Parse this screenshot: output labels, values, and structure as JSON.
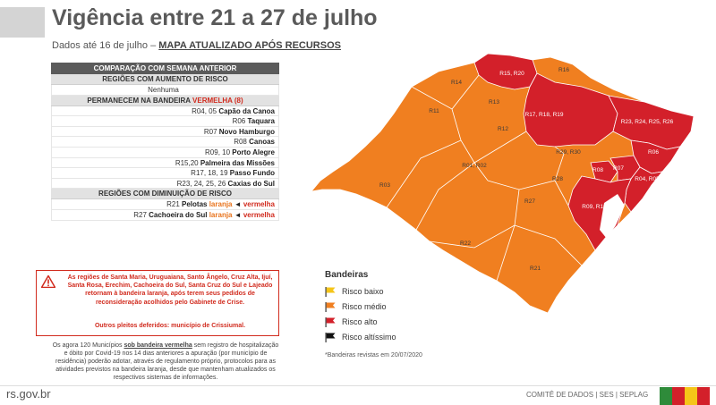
{
  "header": {
    "title": "Vigência entre 21 a 27 de julho",
    "subtitle_prefix": "Dados até 16 de julho –",
    "subtitle_link": "MAPA ATUALIZADO APÓS RECURSOS"
  },
  "comparison": {
    "header": "COMPARAÇÃO COM SEMANA ANTERIOR",
    "increase": {
      "title": "REGIÕES COM AUMENTO DE RISCO",
      "items": [
        "Nenhuma"
      ]
    },
    "remain": {
      "title_prefix": "PERMANECEM NA BANDEIRA ",
      "title_red": "VERMELHA (8)",
      "items": [
        {
          "code": "R04, 05",
          "name": "Capão da Canoa"
        },
        {
          "code": "R06",
          "name": "Taquara"
        },
        {
          "code": "R07",
          "name": "Novo Hamburgo"
        },
        {
          "code": "R08",
          "name": "Canoas"
        },
        {
          "code": "R09, 10",
          "name": "Porto Alegre"
        },
        {
          "code": "R15,20",
          "name": "Palmeira das Missões"
        },
        {
          "code": "R17, 18, 19",
          "name": "Passo Fundo"
        },
        {
          "code": "R23, 24, 25, 26",
          "name": "Caxias do Sul"
        }
      ]
    },
    "decrease": {
      "title": "REGIÕES COM DIMINUIÇÃO DE RISCO",
      "items": [
        {
          "code": "R21",
          "name": "Pelotas",
          "from": "laranja",
          "arrow": "◄",
          "to": "vermelha"
        },
        {
          "code": "R27",
          "name": "Cachoeira do Sul",
          "from": "laranja",
          "arrow": "◄",
          "to": "vermelha"
        }
      ]
    }
  },
  "warning": {
    "text": "As regiões de Santa Maria, Uruguaiana, Santo Ângelo, Cruz Alta, Ijuí, Santa Rosa, Erechim, Cachoeira do Sul, Santa Cruz do Sul e Lajeado retornam à bandeira laranja, após terem seus pedidos de reconsideração acolhidos pelo Gabinete de Crise.",
    "note": "Outros pleitos deferidos: município de Crissiumal."
  },
  "note": {
    "prefix": "Os agora 120 Municípios ",
    "bold": "sob bandeira vermelha",
    "suffix": " sem registro de hospitalização e óbito por Covid-19 nos 14 dias anteriores a apuração (por município de residência) poderão adotar, através de regulamento próprio, protocolos para as atividades previstos na bandeira laranja, desde que mantenham atualizados os respectivos sistemas de informações."
  },
  "map": {
    "colors": {
      "medium": "#f07f20",
      "high": "#d3202a",
      "border": "#ffffff"
    },
    "labels": {
      "r15_20": "R15, R20",
      "r16": "R16",
      "r14": "R14",
      "r13": "R13",
      "r11": "R11",
      "r17_18_19": "R17, R18, R19",
      "r23_26": "R23, R24, R25, R26",
      "r12": "R12",
      "r01_02": "R01, R02",
      "r29_30": "R29, R30",
      "r06": "R06",
      "r08": "R08",
      "r07": "R07",
      "r04_05": "R04, R05",
      "r03": "R03",
      "r28": "R28",
      "r09_10": "R09, R10",
      "r27": "R27",
      "r22": "R22",
      "r21": "R21"
    }
  },
  "legend": {
    "title": "Bandeiras",
    "items": [
      {
        "label": "Risco baixo",
        "color": "#f5c518"
      },
      {
        "label": "Risco médio",
        "color": "#f07f20"
      },
      {
        "label": "Risco alto",
        "color": "#d3202a"
      },
      {
        "label": "Risco altíssimo",
        "color": "#111111"
      }
    ],
    "footnote": "*Bandeiras revistas em 20/07/2020"
  },
  "footer": {
    "site": "rs.gov.br",
    "credits": "COMITÊ DE DADOS  |  SES  |  SEPLAG",
    "stripes": [
      "#2e8b3a",
      "#d3202a",
      "#f5c518",
      "#d3202a"
    ]
  }
}
